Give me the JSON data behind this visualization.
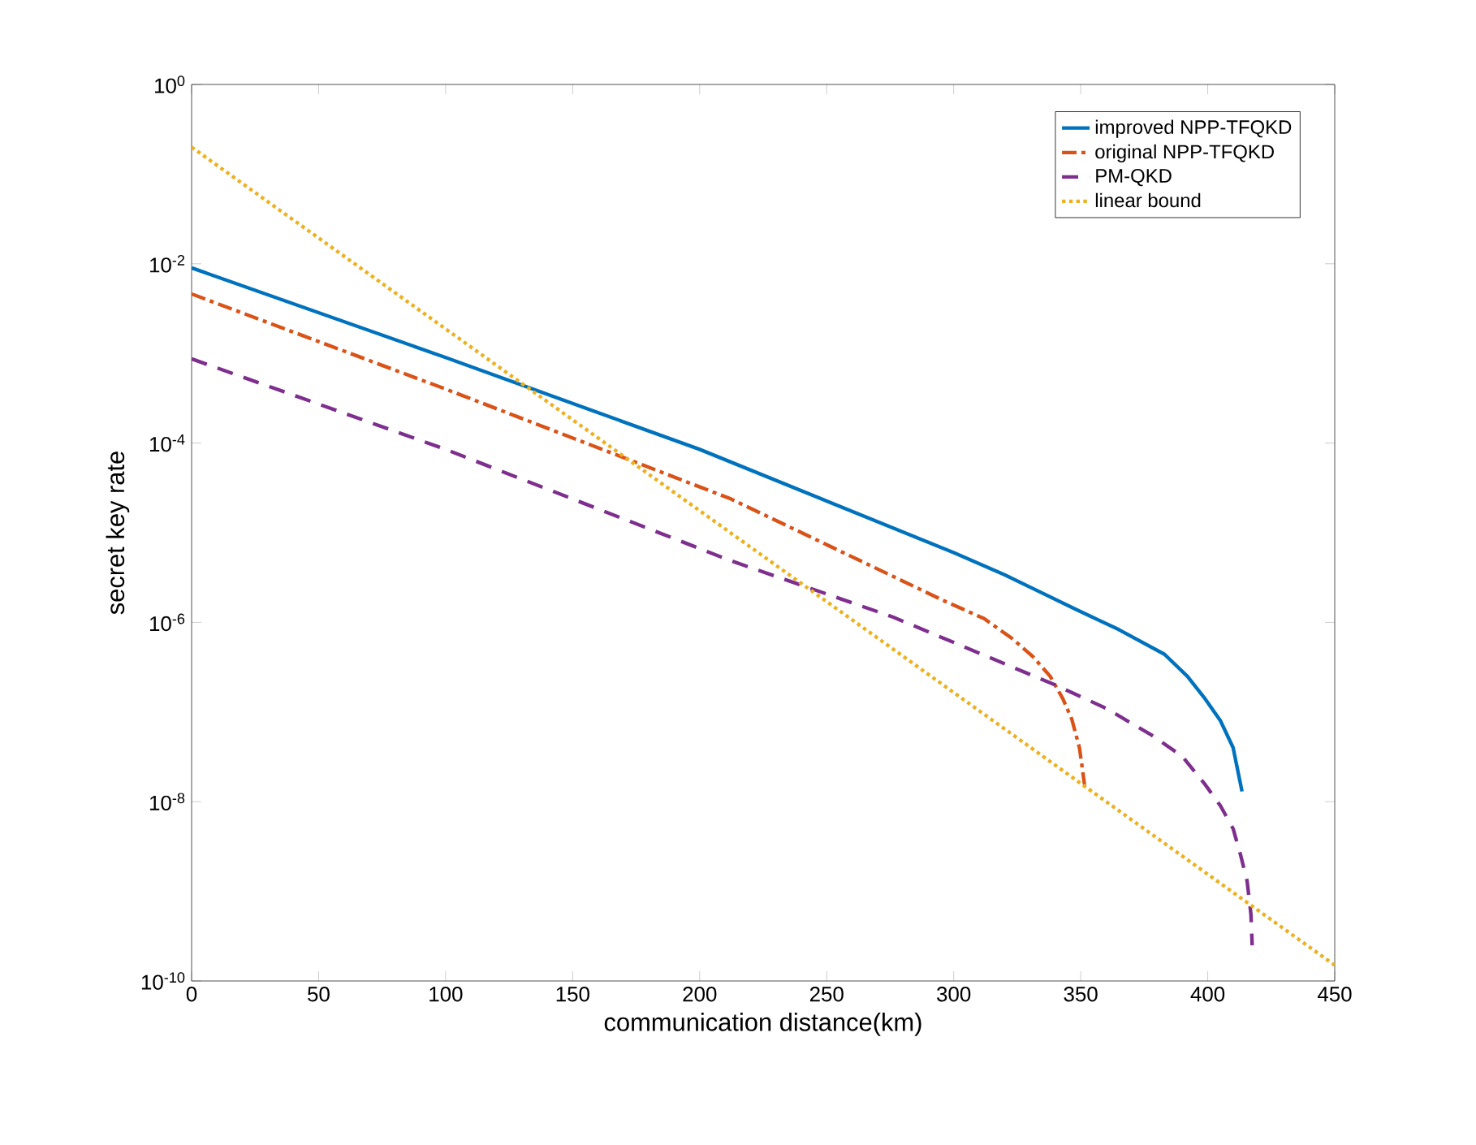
{
  "chart_data": {
    "type": "line",
    "xlabel": "communication distance(km)",
    "ylabel": "secret key rate",
    "log": "y",
    "grid": false,
    "legend": "top right",
    "marker": "none",
    "xlim": [
      0,
      450
    ],
    "xticks": [
      0,
      50,
      100,
      150,
      200,
      250,
      300,
      350,
      400,
      450
    ],
    "ylim": [
      1e-10,
      1
    ],
    "yticks": [
      {
        "value": 1,
        "label": "10$^{0}$"
      },
      {
        "value": 0.01,
        "label": "10$^{-2}$"
      },
      {
        "value": 0.0001,
        "label": "10$^{-4}$"
      },
      {
        "value": 1e-06,
        "label": "10$^{-6}$"
      },
      {
        "value": 1e-08,
        "label": "10$^{-8}$"
      },
      {
        "value": 1e-10,
        "label": "10$^{-10}$"
      }
    ],
    "series": [
      {
        "name": "improved NPP-TFQKD",
        "color": "#0072bd",
        "line_style": "solid",
        "x": [
          0,
          100,
          200,
          300,
          320,
          348,
          365,
          383,
          392,
          399,
          405,
          410,
          413.5
        ],
        "values": [
          0.009,
          0.0009,
          8.5e-05,
          6e-06,
          3.4e-06,
          1.4e-06,
          8.3e-07,
          4.4e-07,
          2.5e-07,
          1.4e-07,
          8e-08,
          4e-08,
          1.3e-08
        ]
      },
      {
        "name": "original NPP-TFQKD",
        "color": "#d95319",
        "line_style": "dashdot",
        "x": [
          0,
          100,
          212,
          297,
          312,
          323,
          331,
          338,
          343,
          346.5,
          349.5,
          351.5
        ],
        "values": [
          0.0046,
          0.0004,
          2.4e-05,
          1.7e-06,
          1.1e-06,
          6.6e-07,
          4.2e-07,
          2.5e-07,
          1.4e-07,
          8.3e-08,
          4e-08,
          1.55e-08
        ]
      },
      {
        "name": "PM-QKD",
        "color": "#7e2f8e",
        "line_style": "dashed",
        "x": [
          0,
          100,
          212,
          276,
          340,
          360,
          378,
          390,
          399,
          405,
          410,
          413,
          415.5,
          417,
          417.5
        ],
        "values": [
          0.00087,
          8.5e-05,
          4.9e-06,
          1.15e-06,
          2e-07,
          1.1e-07,
          5.5e-08,
          3.2e-08,
          1.55e-08,
          9e-09,
          5e-09,
          2.5e-09,
          1.3e-09,
          5.6e-10,
          2.5e-10
        ]
      },
      {
        "name": "linear bound",
        "color": "#edb120",
        "line_style": "dotted",
        "x": [
          0,
          450
        ],
        "values": [
          0.2,
          1.5e-10
        ]
      }
    ]
  }
}
